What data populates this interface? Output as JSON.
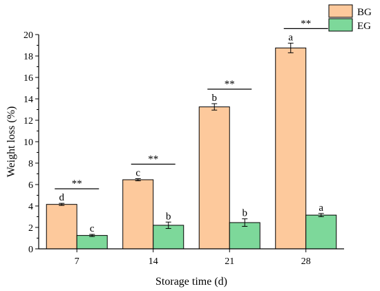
{
  "chart_data": {
    "type": "bar",
    "categories": [
      "7",
      "14",
      "21",
      "28"
    ],
    "series": [
      {
        "name": "BG",
        "values": [
          4.15,
          6.45,
          13.25,
          18.75
        ],
        "errors": [
          0.1,
          0.1,
          0.3,
          0.45
        ],
        "letters": [
          "d",
          "c",
          "b",
          "a"
        ]
      },
      {
        "name": "EG",
        "values": [
          1.25,
          2.2,
          2.45,
          3.15
        ],
        "errors": [
          0.1,
          0.3,
          0.35,
          0.15
        ],
        "letters": [
          "c",
          "b",
          "b",
          "a"
        ]
      }
    ],
    "significance": [
      "**",
      "**",
      "**",
      "**"
    ],
    "title": "",
    "xlabel": "Storage time (d)",
    "ylabel": "Weight loss (%)",
    "ylim": [
      0,
      20
    ],
    "yticks": [
      "0",
      "2",
      "4",
      "6",
      "8",
      "10",
      "12",
      "14",
      "16",
      "18",
      "20"
    ],
    "grid": false,
    "legend_position": "top-right",
    "colors": {
      "BG": "#fdc99c",
      "EG": "#7dd89a",
      "outline": "#000000"
    }
  }
}
